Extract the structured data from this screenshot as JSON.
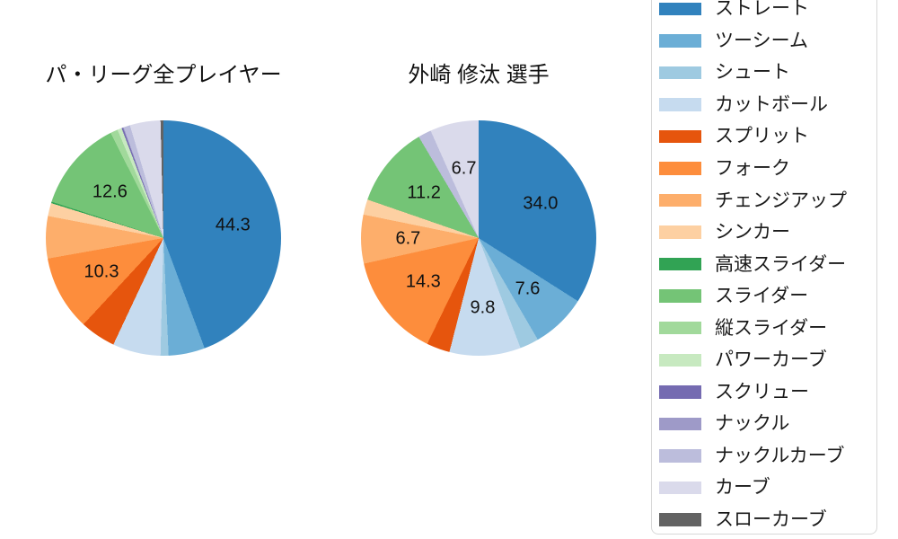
{
  "page": {
    "background_color": "#ffffff",
    "text_color": "#1a1a1a"
  },
  "legend": {
    "border_color": "#d8d8d8",
    "position": "right",
    "items": [
      {
        "label": "ストレート",
        "color": "#3182bd"
      },
      {
        "label": "ツーシーム",
        "color": "#6baed6"
      },
      {
        "label": "シュート",
        "color": "#9ecae1"
      },
      {
        "label": "カットボール",
        "color": "#c6dbef"
      },
      {
        "label": "スプリット",
        "color": "#e6550d"
      },
      {
        "label": "フォーク",
        "color": "#fd8d3c"
      },
      {
        "label": "チェンジアップ",
        "color": "#fdae6b"
      },
      {
        "label": "シンカー",
        "color": "#fdd0a2"
      },
      {
        "label": "高速スライダー",
        "color": "#31a354"
      },
      {
        "label": "スライダー",
        "color": "#74c476"
      },
      {
        "label": "縦スライダー",
        "color": "#a1d99b"
      },
      {
        "label": "パワーカーブ",
        "color": "#c7e9c0"
      },
      {
        "label": "スクリュー",
        "color": "#756bb1"
      },
      {
        "label": "ナックル",
        "color": "#9e9ac8"
      },
      {
        "label": "ナックルカーブ",
        "color": "#bcbddc"
      },
      {
        "label": "カーブ",
        "color": "#dadaeb"
      },
      {
        "label": "スローカーブ",
        "color": "#636363"
      }
    ]
  },
  "chart_data": [
    {
      "type": "pie",
      "title": "パ・リーグ全プレイヤー",
      "start_angle": "top",
      "direction": "clockwise",
      "legend_position": "right",
      "label_radius_fraction": 0.6,
      "categories": [
        "ストレート",
        "ツーシーム",
        "シュート",
        "カットボール",
        "スプリット",
        "フォーク",
        "チェンジアップ",
        "シンカー",
        "高速スライダー",
        "スライダー",
        "縦スライダー",
        "パワーカーブ",
        "スクリュー",
        "ナックル",
        "ナックルカーブ",
        "カーブ",
        "スローカーブ"
      ],
      "values": [
        44.3,
        5.0,
        1.1,
        6.6,
        4.9,
        10.3,
        5.8,
        1.8,
        0.2,
        12.6,
        1.0,
        0.6,
        0.2,
        0.1,
        0.9,
        4.2,
        0.4
      ],
      "value_labels": [
        "44.3",
        null,
        null,
        null,
        null,
        "10.3",
        null,
        null,
        null,
        "12.6",
        null,
        null,
        null,
        null,
        null,
        null,
        null
      ]
    },
    {
      "type": "pie",
      "title": "外崎 修汰 選手",
      "start_angle": "top",
      "direction": "clockwise",
      "legend_position": "right",
      "label_radius_fraction": 0.6,
      "categories": [
        "ストレート",
        "ツーシーム",
        "シュート",
        "カットボール",
        "スプリット",
        "フォーク",
        "チェンジアップ",
        "シンカー",
        "高速スライダー",
        "スライダー",
        "縦スライダー",
        "パワーカーブ",
        "スクリュー",
        "ナックル",
        "ナックルカーブ",
        "カーブ",
        "スローカーブ"
      ],
      "values": [
        34.0,
        7.6,
        2.6,
        9.8,
        3.2,
        14.3,
        6.7,
        2.1,
        0,
        11.2,
        0,
        0,
        0,
        0,
        1.8,
        6.7,
        0
      ],
      "value_labels": [
        "34.0",
        "7.6",
        null,
        "9.8",
        null,
        "14.3",
        "6.7",
        null,
        null,
        "11.2",
        null,
        null,
        null,
        null,
        null,
        "6.7",
        null
      ]
    }
  ]
}
